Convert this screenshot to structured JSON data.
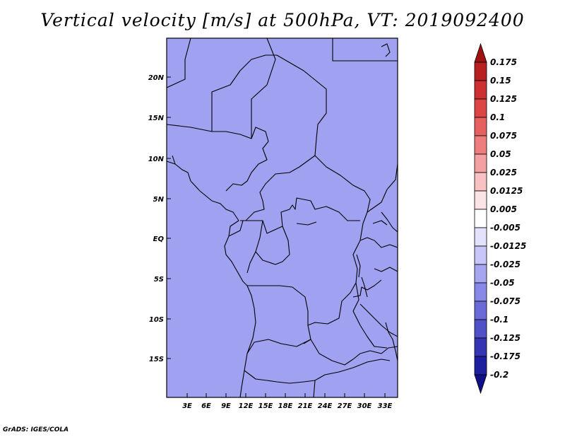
{
  "title": "Vertical velocity [m/s] at 500hPa, VT: 2019092400",
  "footer": "GrADS: IGES/COLA",
  "map": {
    "lat_labels": [
      "20N",
      "15N",
      "10N",
      "5N",
      "EQ",
      "5S",
      "10S",
      "15S"
    ],
    "lon_labels": [
      "3E",
      "6E",
      "9E",
      "12E",
      "15E",
      "18E",
      "21E",
      "24E",
      "27E",
      "30E",
      "33E"
    ]
  },
  "colorbar": {
    "labels": [
      "0.175",
      "0.15",
      "0.125",
      "0.1",
      "0.075",
      "0.05",
      "0.025",
      "0.0125",
      "0.005",
      "-0.005",
      "-0.0125",
      "-0.025",
      "-0.05",
      "-0.075",
      "-0.1",
      "-0.125",
      "-0.175",
      "-0.2"
    ],
    "colors": [
      "#a01212",
      "#b82020",
      "#cc3030",
      "#dd4444",
      "#e66060",
      "#ee7e7e",
      "#f4a0a0",
      "#f8c2c2",
      "#fce4e4",
      "#ffffff",
      "#e2e2fc",
      "#c6c6f8",
      "#a6a6f0",
      "#8888e8",
      "#6a6ad8",
      "#5050c8",
      "#3434b4",
      "#1e1ea0",
      "#0f0f88"
    ]
  }
}
